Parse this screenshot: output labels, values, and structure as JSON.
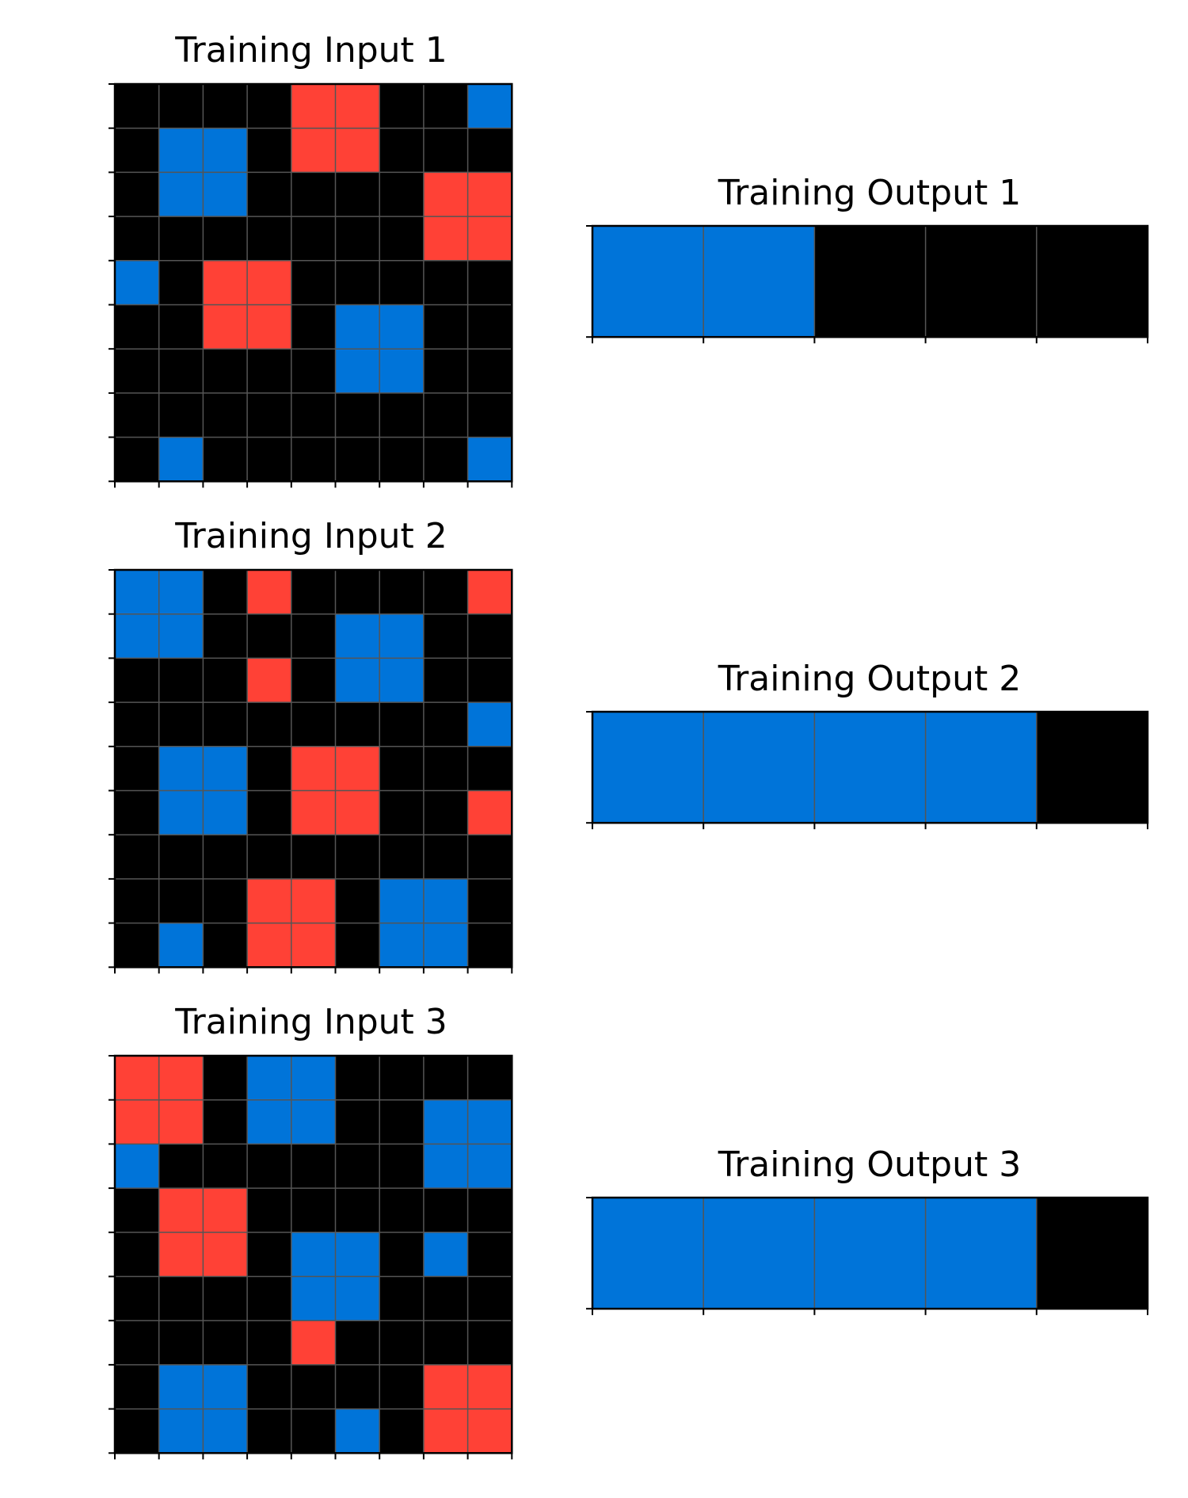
{
  "colors": {
    "0": "#000000",
    "1": "#0074D9",
    "2": "#FF4136",
    "gridline": "#555555",
    "border": "#000000",
    "background": "#ffffff"
  },
  "panels": [
    {
      "title": "Training Input 1",
      "kind": "input",
      "grid": [
        [
          0,
          0,
          0,
          0,
          2,
          2,
          0,
          0,
          1
        ],
        [
          0,
          1,
          1,
          0,
          2,
          2,
          0,
          0,
          0
        ],
        [
          0,
          1,
          1,
          0,
          0,
          0,
          0,
          2,
          2
        ],
        [
          0,
          0,
          0,
          0,
          0,
          0,
          0,
          2,
          2
        ],
        [
          1,
          0,
          2,
          2,
          0,
          0,
          0,
          0,
          0
        ],
        [
          0,
          0,
          2,
          2,
          0,
          1,
          1,
          0,
          0
        ],
        [
          0,
          0,
          0,
          0,
          0,
          1,
          1,
          0,
          0
        ],
        [
          0,
          0,
          0,
          0,
          0,
          0,
          0,
          0,
          0
        ],
        [
          0,
          1,
          0,
          0,
          0,
          0,
          0,
          0,
          1
        ]
      ]
    },
    {
      "title": "Training Output 1",
      "kind": "output",
      "grid": [
        [
          1,
          1,
          0,
          0,
          0
        ]
      ]
    },
    {
      "title": "Training Input 2",
      "kind": "input",
      "grid": [
        [
          1,
          1,
          0,
          2,
          0,
          0,
          0,
          0,
          2
        ],
        [
          1,
          1,
          0,
          0,
          0,
          1,
          1,
          0,
          0
        ],
        [
          0,
          0,
          0,
          2,
          0,
          1,
          1,
          0,
          0
        ],
        [
          0,
          0,
          0,
          0,
          0,
          0,
          0,
          0,
          1
        ],
        [
          0,
          1,
          1,
          0,
          2,
          2,
          0,
          0,
          0
        ],
        [
          0,
          1,
          1,
          0,
          2,
          2,
          0,
          0,
          2
        ],
        [
          0,
          0,
          0,
          0,
          0,
          0,
          0,
          0,
          0
        ],
        [
          0,
          0,
          0,
          2,
          2,
          0,
          1,
          1,
          0
        ],
        [
          0,
          1,
          0,
          2,
          2,
          0,
          1,
          1,
          0
        ]
      ]
    },
    {
      "title": "Training Output 2",
      "kind": "output",
      "grid": [
        [
          1,
          1,
          1,
          1,
          0
        ]
      ]
    },
    {
      "title": "Training Input 3",
      "kind": "input",
      "grid": [
        [
          2,
          2,
          0,
          1,
          1,
          0,
          0,
          0,
          0
        ],
        [
          2,
          2,
          0,
          1,
          1,
          0,
          0,
          1,
          1
        ],
        [
          1,
          0,
          0,
          0,
          0,
          0,
          0,
          1,
          1
        ],
        [
          0,
          2,
          2,
          0,
          0,
          0,
          0,
          0,
          0
        ],
        [
          0,
          2,
          2,
          0,
          1,
          1,
          0,
          1,
          0
        ],
        [
          0,
          0,
          0,
          0,
          1,
          1,
          0,
          0,
          0
        ],
        [
          0,
          0,
          0,
          0,
          2,
          0,
          0,
          0,
          0
        ],
        [
          0,
          1,
          1,
          0,
          0,
          0,
          0,
          2,
          2
        ],
        [
          0,
          1,
          1,
          0,
          0,
          1,
          0,
          2,
          2
        ]
      ]
    },
    {
      "title": "Training Output 3",
      "kind": "output",
      "grid": [
        [
          1,
          1,
          1,
          1,
          0
        ]
      ]
    }
  ]
}
